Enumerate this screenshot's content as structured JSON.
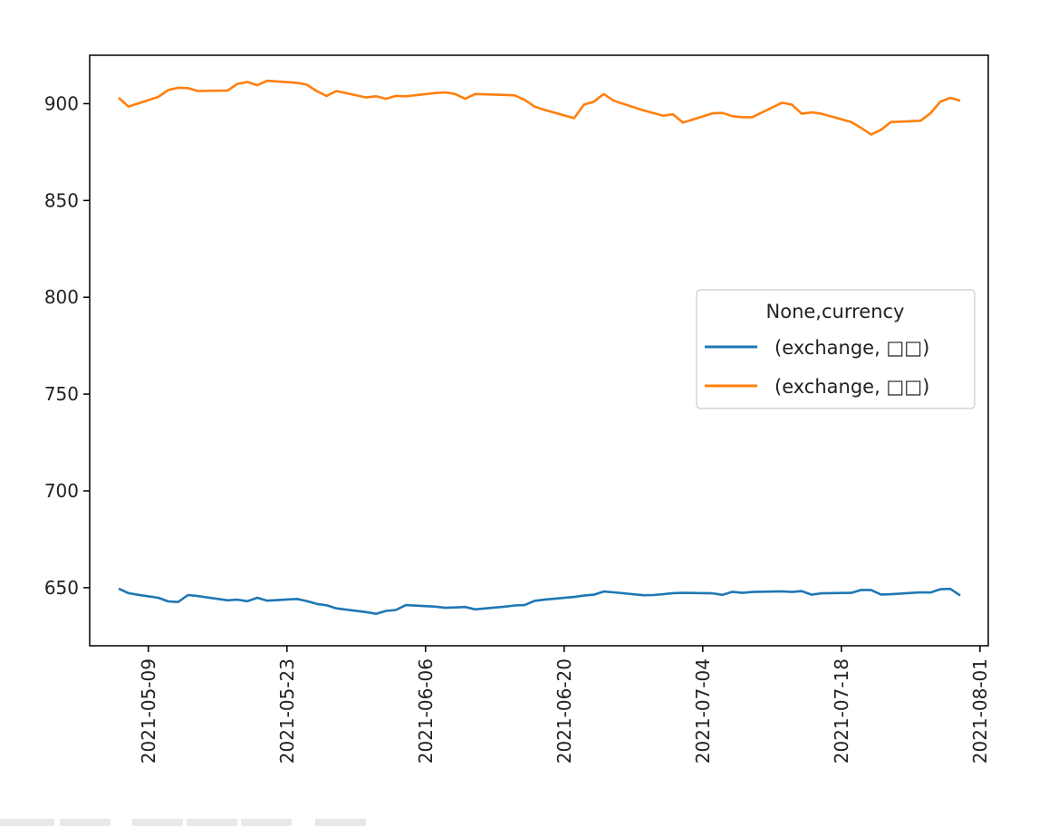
{
  "chart_data": {
    "type": "line",
    "title": "",
    "xlabel": "",
    "ylabel": "",
    "x_start": "2021-05-06",
    "xlim": [
      "2021-05-05",
      "2021-08-01"
    ],
    "ylim": [
      620,
      925
    ],
    "x_ticks": [
      {
        "date": "2021-05-09",
        "label": "2021-05-09"
      },
      {
        "date": "2021-05-23",
        "label": "2021-05-23"
      },
      {
        "date": "2021-06-06",
        "label": "2021-06-06"
      },
      {
        "date": "2021-06-20",
        "label": "2021-06-20"
      },
      {
        "date": "2021-07-04",
        "label": "2021-07-04"
      },
      {
        "date": "2021-07-18",
        "label": "2021-07-18"
      },
      {
        "date": "2021-08-01",
        "label": "2021-08-01"
      }
    ],
    "y_ticks": [
      650,
      700,
      750,
      800,
      850,
      900
    ],
    "grid": false,
    "legend": {
      "title": "None,currency",
      "position": "center-right"
    },
    "series": [
      {
        "name": "(exchange, □□)",
        "color": "#1f77b4",
        "points": [
          [
            "2021-05-06",
            649.5
          ],
          [
            "2021-05-07",
            647.2
          ],
          [
            "2021-05-08",
            646.3
          ],
          [
            "2021-05-10",
            644.8
          ],
          [
            "2021-05-11",
            642.9
          ],
          [
            "2021-05-12",
            642.6
          ],
          [
            "2021-05-13",
            646.2
          ],
          [
            "2021-05-14",
            645.7
          ],
          [
            "2021-05-17",
            643.5
          ],
          [
            "2021-05-18",
            643.8
          ],
          [
            "2021-05-19",
            643.0
          ],
          [
            "2021-05-20",
            644.8
          ],
          [
            "2021-05-21",
            643.3
          ],
          [
            "2021-05-24",
            644.2
          ],
          [
            "2021-05-25",
            643.1
          ],
          [
            "2021-05-26",
            641.6
          ],
          [
            "2021-05-27",
            640.9
          ],
          [
            "2021-05-28",
            639.3
          ],
          [
            "2021-05-31",
            637.4
          ],
          [
            "2021-06-01",
            636.5
          ],
          [
            "2021-06-02",
            638.0
          ],
          [
            "2021-06-03",
            638.5
          ],
          [
            "2021-06-04",
            641.0
          ],
          [
            "2021-06-07",
            640.2
          ],
          [
            "2021-06-08",
            639.6
          ],
          [
            "2021-06-09",
            639.8
          ],
          [
            "2021-06-10",
            640.0
          ],
          [
            "2021-06-11",
            638.8
          ],
          [
            "2021-06-14",
            640.2
          ],
          [
            "2021-06-15",
            640.8
          ],
          [
            "2021-06-16",
            641.0
          ],
          [
            "2021-06-17",
            643.2
          ],
          [
            "2021-06-18",
            643.8
          ],
          [
            "2021-06-21",
            645.2
          ],
          [
            "2021-06-22",
            645.9
          ],
          [
            "2021-06-23",
            646.4
          ],
          [
            "2021-06-24",
            648.0
          ],
          [
            "2021-06-25",
            647.6
          ],
          [
            "2021-06-28",
            646.1
          ],
          [
            "2021-06-29",
            646.2
          ],
          [
            "2021-06-30",
            646.6
          ],
          [
            "2021-07-01",
            647.2
          ],
          [
            "2021-07-02",
            647.3
          ],
          [
            "2021-07-05",
            647.1
          ],
          [
            "2021-07-06",
            646.3
          ],
          [
            "2021-07-07",
            647.9
          ],
          [
            "2021-07-08",
            647.3
          ],
          [
            "2021-07-09",
            647.8
          ],
          [
            "2021-07-12",
            648.1
          ],
          [
            "2021-07-13",
            647.8
          ],
          [
            "2021-07-14",
            648.2
          ],
          [
            "2021-07-15",
            646.4
          ],
          [
            "2021-07-16",
            647.1
          ],
          [
            "2021-07-19",
            647.3
          ],
          [
            "2021-07-20",
            648.8
          ],
          [
            "2021-07-21",
            648.8
          ],
          [
            "2021-07-22",
            646.5
          ],
          [
            "2021-07-23",
            646.6
          ],
          [
            "2021-07-26",
            647.6
          ],
          [
            "2021-07-27",
            647.5
          ],
          [
            "2021-07-28",
            649.2
          ],
          [
            "2021-07-29",
            649.4
          ],
          [
            "2021-07-30",
            646.0
          ]
        ]
      },
      {
        "name": "(exchange, □□)",
        "color": "#ff7f0e",
        "points": [
          [
            "2021-05-06",
            903.0
          ],
          [
            "2021-05-07",
            898.5
          ],
          [
            "2021-05-10",
            903.5
          ],
          [
            "2021-05-11",
            907.0
          ],
          [
            "2021-05-12",
            908.2
          ],
          [
            "2021-05-13",
            908.0
          ],
          [
            "2021-05-14",
            906.5
          ],
          [
            "2021-05-17",
            906.8
          ],
          [
            "2021-05-18",
            910.2
          ],
          [
            "2021-05-19",
            911.2
          ],
          [
            "2021-05-20",
            909.5
          ],
          [
            "2021-05-21",
            911.8
          ],
          [
            "2021-05-24",
            910.8
          ],
          [
            "2021-05-25",
            909.8
          ],
          [
            "2021-05-26",
            906.5
          ],
          [
            "2021-05-27",
            904.0
          ],
          [
            "2021-05-28",
            906.5
          ],
          [
            "2021-05-31",
            903.2
          ],
          [
            "2021-06-01",
            903.8
          ],
          [
            "2021-06-02",
            902.5
          ],
          [
            "2021-06-03",
            904.0
          ],
          [
            "2021-06-04",
            903.8
          ],
          [
            "2021-06-07",
            905.5
          ],
          [
            "2021-06-08",
            905.8
          ],
          [
            "2021-06-09",
            905.0
          ],
          [
            "2021-06-10",
            902.5
          ],
          [
            "2021-06-11",
            905.0
          ],
          [
            "2021-06-14",
            904.5
          ],
          [
            "2021-06-15",
            904.3
          ],
          [
            "2021-06-16",
            902.0
          ],
          [
            "2021-06-17",
            898.5
          ],
          [
            "2021-06-18",
            896.8
          ],
          [
            "2021-06-21",
            892.5
          ],
          [
            "2021-06-22",
            899.5
          ],
          [
            "2021-06-23",
            901.0
          ],
          [
            "2021-06-24",
            905.0
          ],
          [
            "2021-06-25",
            901.5
          ],
          [
            "2021-06-28",
            896.5
          ],
          [
            "2021-06-29",
            895.2
          ],
          [
            "2021-06-30",
            893.8
          ],
          [
            "2021-07-01",
            894.5
          ],
          [
            "2021-07-02",
            890.2
          ],
          [
            "2021-07-05",
            895.0
          ],
          [
            "2021-07-06",
            895.2
          ],
          [
            "2021-07-07",
            893.5
          ],
          [
            "2021-07-08",
            893.0
          ],
          [
            "2021-07-09",
            893.0
          ],
          [
            "2021-07-12",
            900.5
          ],
          [
            "2021-07-13",
            899.5
          ],
          [
            "2021-07-14",
            894.8
          ],
          [
            "2021-07-15",
            895.5
          ],
          [
            "2021-07-16",
            894.8
          ],
          [
            "2021-07-19",
            890.5
          ],
          [
            "2021-07-20",
            887.5
          ],
          [
            "2021-07-21",
            884.0
          ],
          [
            "2021-07-22",
            886.5
          ],
          [
            "2021-07-23",
            890.5
          ],
          [
            "2021-07-26",
            891.2
          ],
          [
            "2021-07-27",
            895.0
          ],
          [
            "2021-07-28",
            901.0
          ],
          [
            "2021-07-29",
            903.0
          ],
          [
            "2021-07-30",
            901.5
          ]
        ]
      }
    ]
  }
}
